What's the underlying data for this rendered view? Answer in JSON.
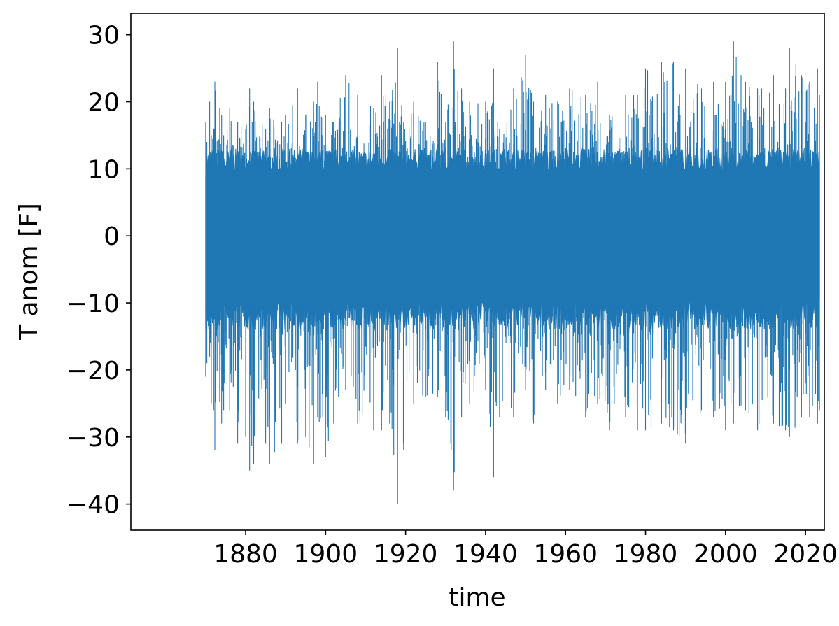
{
  "chart_data": {
    "type": "line",
    "title": "",
    "xlabel": "time",
    "ylabel": "T anom [F]",
    "xlim": [
      1851.3,
      2024.7
    ],
    "ylim": [
      -43.9,
      33.2
    ],
    "x_ticks": [
      1880,
      1900,
      1920,
      1940,
      1960,
      1980,
      2000,
      2020
    ],
    "x_tick_labels": [
      "1880",
      "1900",
      "1920",
      "1940",
      "1960",
      "1980",
      "2000",
      "2020"
    ],
    "y_ticks": [
      -40,
      -30,
      -20,
      -10,
      0,
      10,
      20,
      30
    ],
    "y_tick_labels": [
      "−40",
      "−30",
      "−20",
      "−10",
      "0",
      "10",
      "20",
      "30"
    ],
    "grid": false,
    "legend": "none",
    "series": [
      {
        "color": "#1f77b4",
        "x": [
          1870.0,
          1870.3,
          1871.0,
          1871.4,
          1872.0,
          1872.3,
          1874.0,
          1874.5,
          1876.0,
          1878.0,
          1880.0,
          1881.0,
          1882.0,
          1885.0,
          1886.0,
          1889.0,
          1890.0,
          1893.0,
          1895.0,
          1897.0,
          1898.0,
          1900.0,
          1902.0,
          1905.0,
          1908.0,
          1912.0,
          1914.0,
          1916.0,
          1918.0,
          1919.5,
          1922.0,
          1925.0,
          1928.0,
          1930.0,
          1932.0,
          1934.0,
          1936.0,
          1940.0,
          1942.0,
          1943.5,
          1947.0,
          1950.0,
          1952.0,
          1955.0,
          1958.0,
          1961.0,
          1965.0,
          1968.0,
          1971.0,
          1975.0,
          1978.0,
          1980.0,
          1984.0,
          1987.0,
          1990.0,
          1994.0,
          1997.0,
          2000.0,
          2002.0,
          2005.0,
          2008.0,
          2012.0,
          2015.0,
          2016.0,
          2019.0,
          2021.0,
          2023.0,
          2023.5
        ],
        "max": [
          17,
          14,
          20,
          15,
          16,
          23,
          18,
          15,
          19,
          17,
          16,
          22,
          20,
          16,
          19,
          17,
          18,
          22,
          18,
          20,
          23,
          18,
          17,
          24,
          21,
          19,
          24,
          20,
          28,
          17,
          20,
          17,
          26,
          17,
          29,
          22,
          20,
          20,
          25,
          16,
          22,
          27,
          20,
          21,
          20,
          22,
          21,
          23,
          18,
          21,
          21,
          25,
          26,
          26,
          25,
          22,
          23,
          23,
          29,
          23,
          22,
          24,
          22,
          28,
          24,
          23,
          25,
          21
        ],
        "min": [
          -21,
          -19,
          -18,
          -25,
          -26,
          -32,
          -28,
          -26,
          -26,
          -31,
          -30,
          -35,
          -34,
          -31,
          -34,
          -31,
          -25,
          -31,
          -30,
          -34,
          -27,
          -33,
          -28,
          -23,
          -28,
          -29,
          -29,
          -28,
          -40,
          -32,
          -25,
          -24,
          -24,
          -27,
          -38,
          -27,
          -25,
          -23,
          -36,
          -27,
          -27,
          -23,
          -28,
          -23,
          -25,
          -23,
          -27,
          -25,
          -29,
          -27,
          -29,
          -29,
          -28,
          -29,
          -31,
          -26,
          -27,
          -29,
          -28,
          -26,
          -29,
          -28,
          -29,
          -30,
          -27,
          -27,
          -28,
          -26
        ]
      }
    ]
  }
}
